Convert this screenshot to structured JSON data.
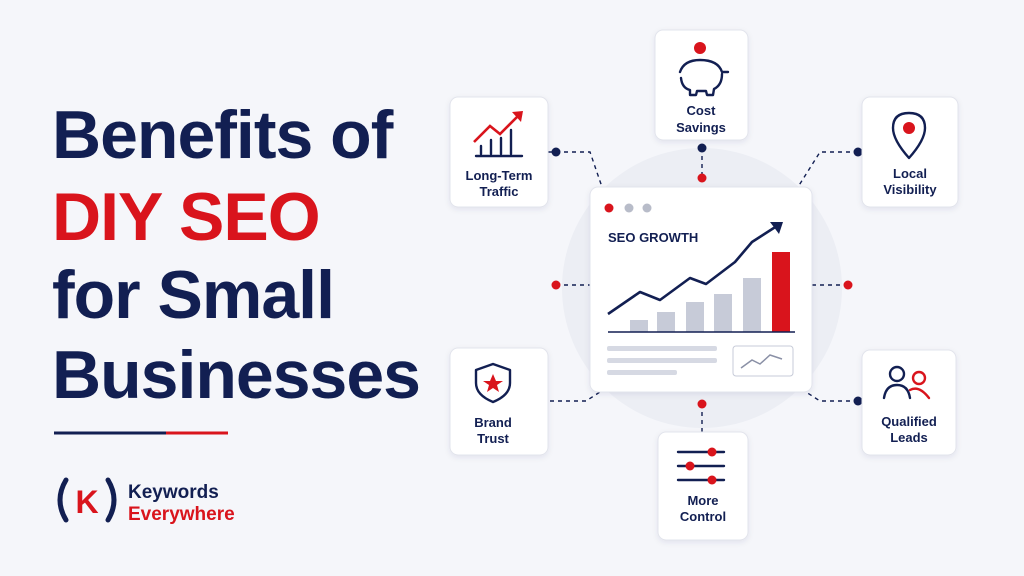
{
  "title": {
    "line1": "Benefits of",
    "line2": "DIY SEO",
    "line3": "for Small",
    "line4": "Businesses"
  },
  "brand": {
    "mark": "K",
    "line1": "Keywords",
    "line2": "Everywhere"
  },
  "card": {
    "title": "SEO GROWTH"
  },
  "nodes": [
    {
      "label": [
        "Cost",
        "Savings"
      ]
    },
    {
      "label": [
        "Long-Term",
        "Traffic"
      ]
    },
    {
      "label": [
        "Local",
        "Visibility"
      ]
    },
    {
      "label": [
        "Brand",
        "Trust"
      ]
    },
    {
      "label": [
        "More",
        "Control"
      ]
    },
    {
      "label": [
        "Qualified",
        "Leads"
      ]
    }
  ]
}
